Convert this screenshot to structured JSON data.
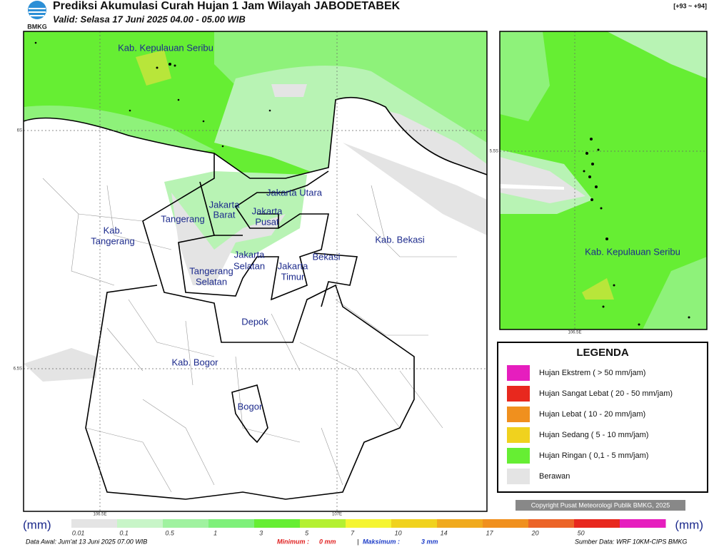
{
  "header": {
    "logo": "BMKG",
    "title": "Prediksi Akumulasi Curah Hujan 1 Jam Wilayah JABODETABEK",
    "subtitle": "Valid: Selasa 17 Juni 2025 04.00 - 05.00 WIB",
    "code": "[+93 ~ +94]"
  },
  "map": {
    "labels": [
      "Kab. Kepulauan Seribu",
      "Jakarta Utara",
      "Jakarta",
      "Barat",
      "Jakarta",
      "Pusat",
      "Tangerang",
      "Kab.",
      "Tangerang",
      "Jakarta",
      "Selatan",
      "Jakarta",
      "Timur",
      "Bekasi",
      "Kab. Bekasi",
      "Tangerang",
      "Selatan",
      "Depok",
      "Kab. Bogor",
      "Bogor"
    ],
    "ticks": [
      "6S",
      "6.5S",
      "106.5E",
      "107E"
    ]
  },
  "inset": {
    "label": "Kab. Kepulauan Seribu",
    "ticks": [
      "5.5S",
      "106.5E"
    ]
  },
  "legend": {
    "title": "LEGENDA",
    "items": [
      {
        "label": "Hujan Ekstrem ( > 50 mm/jam)",
        "color": "#e61ebe"
      },
      {
        "label": "Hujan Sangat Lebat ( 20 - 50 mm/jam)",
        "color": "#e8281e"
      },
      {
        "label": "Hujan Lebat ( 10 - 20 mm/jam)",
        "color": "#f0901e"
      },
      {
        "label": "Hujan Sedang ( 5 - 10 mm/jam)",
        "color": "#f0d21e"
      },
      {
        "label": "Hujan Ringan ( 0,1 - 5 mm/jam)",
        "color": "#66ee33"
      },
      {
        "label": "Berawan",
        "color": "#e4e4e4"
      }
    ]
  },
  "copyright": "Copyright Pusat Meteorologi Publik BMKG, 2025",
  "colorbar": {
    "unit": "(mm)",
    "labels": [
      "0.01",
      "0.1",
      "0.5",
      "1",
      "3",
      "5",
      "7",
      "10",
      "14",
      "17",
      "20",
      "50"
    ],
    "colors": [
      "#e4e4e4",
      "#c8f5c8",
      "#a0f2a0",
      "#7ef07a",
      "#66ee33",
      "#b4f032",
      "#f5f532",
      "#f0d21e",
      "#f0aa1e",
      "#f0901e",
      "#ec6428",
      "#e8281e",
      "#e61ebe"
    ]
  },
  "footer": {
    "data_awal": "Data Awal: Jum'at 13 Juni 2025 07.00 WIB",
    "min_label": "Minimum :",
    "min_value": "0 mm",
    "separator": "|",
    "max_label": "Maksimum :",
    "max_value": "3 mm",
    "source": "Sumber Data: WRF 10KM-CIPS BMKG"
  }
}
